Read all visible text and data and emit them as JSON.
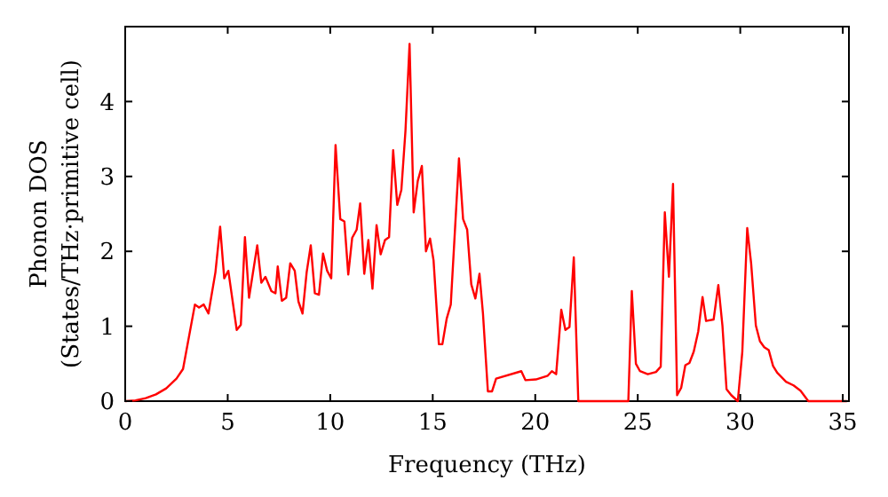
{
  "chart_data": {
    "type": "line",
    "xlabel": "Frequency (THz)",
    "ylabel": "Phonon DOS\n(States/THz·primitive cell)",
    "xlim": [
      0,
      35.3
    ],
    "ylim": [
      0,
      5
    ],
    "xticks": [
      0,
      5,
      10,
      15,
      20,
      25,
      30,
      35
    ],
    "yticks": [
      0,
      1,
      2,
      3,
      4
    ],
    "grid": false,
    "marker": "none",
    "line_style": "solid",
    "series": [
      {
        "color": "#ff0000",
        "x": [
          0,
          0.5,
          1,
          1.5,
          2,
          2.5,
          2.82,
          3.4,
          3.6,
          3.83,
          4.06,
          4.4,
          4.63,
          4.83,
          5.03,
          5.44,
          5.64,
          5.84,
          6.04,
          6.44,
          6.64,
          6.84,
          7.13,
          7.33,
          7.44,
          7.64,
          7.85,
          8.05,
          8.27,
          8.45,
          8.65,
          8.85,
          9.05,
          9.25,
          9.45,
          9.65,
          9.85,
          10.05,
          10.26,
          10.49,
          10.69,
          10.88,
          11.07,
          11.29,
          11.46,
          11.66,
          11.86,
          12.06,
          12.26,
          12.46,
          12.67,
          12.87,
          13.07,
          13.27,
          13.47,
          13.67,
          13.87,
          14.07,
          14.27,
          14.47,
          14.67,
          14.87,
          15.04,
          15.3,
          15.47,
          15.68,
          15.88,
          16.28,
          16.48,
          16.68,
          16.88,
          17.08,
          17.28,
          17.45,
          17.69,
          17.89,
          18.09,
          19.32,
          19.52,
          20.03,
          20.61,
          20.81,
          21.02,
          21.27,
          21.47,
          21.67,
          21.88,
          22.1,
          24.54,
          24.71,
          24.91,
          25.11,
          25.49,
          25.89,
          26.12,
          26.32,
          26.52,
          26.72,
          26.92,
          27.12,
          27.32,
          27.52,
          27.73,
          27.95,
          28.16,
          28.33,
          28.7,
          28.93,
          29.13,
          29.33,
          29.56,
          29.88,
          30.1,
          30.34,
          30.53,
          30.76,
          30.96,
          31.17,
          31.39,
          31.6,
          31.8,
          32.23,
          32.6,
          32.94,
          33.32,
          35.2
        ],
        "values": [
          0,
          0.01,
          0.04,
          0.09,
          0.17,
          0.3,
          0.43,
          1.29,
          1.25,
          1.29,
          1.17,
          1.72,
          2.33,
          1.64,
          1.74,
          0.95,
          1.02,
          2.19,
          1.38,
          2.08,
          1.58,
          1.66,
          1.47,
          1.44,
          1.8,
          1.34,
          1.38,
          1.84,
          1.74,
          1.33,
          1.17,
          1.72,
          2.08,
          1.44,
          1.42,
          1.97,
          1.74,
          1.64,
          3.42,
          2.43,
          2.4,
          1.69,
          2.18,
          2.29,
          2.64,
          1.7,
          2.15,
          1.5,
          2.35,
          1.96,
          2.15,
          2.19,
          3.35,
          2.62,
          2.82,
          3.61,
          4.77,
          2.52,
          2.94,
          3.14,
          2.0,
          2.17,
          1.88,
          0.76,
          0.76,
          1.1,
          1.29,
          3.24,
          2.43,
          2.29,
          1.56,
          1.37,
          1.7,
          1.17,
          0.13,
          0.13,
          0.3,
          0.4,
          0.28,
          0.29,
          0.34,
          0.4,
          0.36,
          1.22,
          0.95,
          0.99,
          1.92,
          0,
          0,
          1.47,
          0.5,
          0.4,
          0.36,
          0.39,
          0.46,
          2.52,
          1.66,
          2.9,
          0.08,
          0.18,
          0.48,
          0.51,
          0.66,
          0.93,
          1.39,
          1.07,
          1.09,
          1.55,
          1.01,
          0.16,
          0.08,
          0,
          0.66,
          2.31,
          1.84,
          1.01,
          0.8,
          0.72,
          0.68,
          0.47,
          0.38,
          0.26,
          0.21,
          0.14,
          0,
          0
        ]
      }
    ]
  }
}
